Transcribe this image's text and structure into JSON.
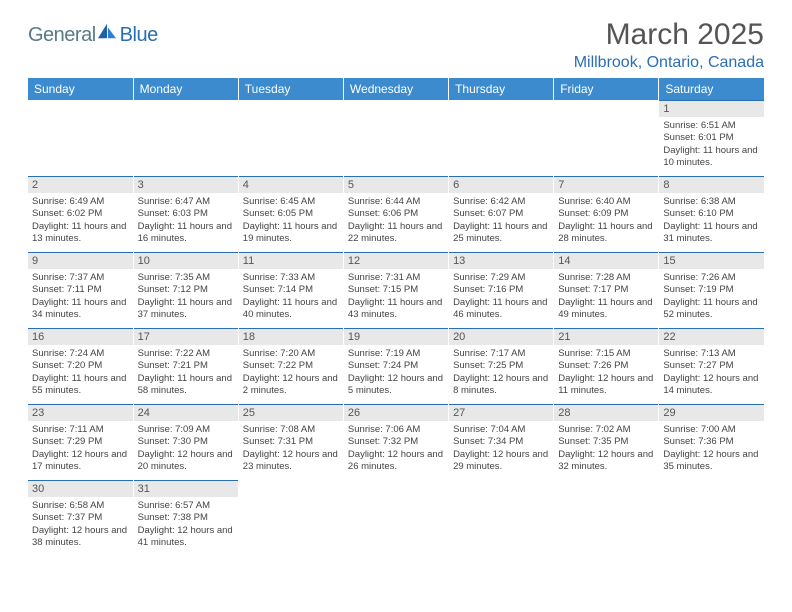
{
  "brand": {
    "part1": "General",
    "part2": "Blue"
  },
  "title": "March 2025",
  "location": "Millbrook, Ontario, Canada",
  "colors": {
    "header_bg": "#3b8bce",
    "header_text": "#ffffff",
    "daynum_bg": "#e8e8e8",
    "daynum_border": "#2a6fb5",
    "brand_gray": "#5a7a8a",
    "brand_blue": "#2a6fb5",
    "page_bg": "#ffffff"
  },
  "weekdays": [
    "Sunday",
    "Monday",
    "Tuesday",
    "Wednesday",
    "Thursday",
    "Friday",
    "Saturday"
  ],
  "weeks": [
    [
      null,
      null,
      null,
      null,
      null,
      null,
      {
        "n": "1",
        "sr": "6:51 AM",
        "ss": "6:01 PM",
        "dl": "11 hours and 10 minutes."
      }
    ],
    [
      {
        "n": "2",
        "sr": "6:49 AM",
        "ss": "6:02 PM",
        "dl": "11 hours and 13 minutes."
      },
      {
        "n": "3",
        "sr": "6:47 AM",
        "ss": "6:03 PM",
        "dl": "11 hours and 16 minutes."
      },
      {
        "n": "4",
        "sr": "6:45 AM",
        "ss": "6:05 PM",
        "dl": "11 hours and 19 minutes."
      },
      {
        "n": "5",
        "sr": "6:44 AM",
        "ss": "6:06 PM",
        "dl": "11 hours and 22 minutes."
      },
      {
        "n": "6",
        "sr": "6:42 AM",
        "ss": "6:07 PM",
        "dl": "11 hours and 25 minutes."
      },
      {
        "n": "7",
        "sr": "6:40 AM",
        "ss": "6:09 PM",
        "dl": "11 hours and 28 minutes."
      },
      {
        "n": "8",
        "sr": "6:38 AM",
        "ss": "6:10 PM",
        "dl": "11 hours and 31 minutes."
      }
    ],
    [
      {
        "n": "9",
        "sr": "7:37 AM",
        "ss": "7:11 PM",
        "dl": "11 hours and 34 minutes."
      },
      {
        "n": "10",
        "sr": "7:35 AM",
        "ss": "7:12 PM",
        "dl": "11 hours and 37 minutes."
      },
      {
        "n": "11",
        "sr": "7:33 AM",
        "ss": "7:14 PM",
        "dl": "11 hours and 40 minutes."
      },
      {
        "n": "12",
        "sr": "7:31 AM",
        "ss": "7:15 PM",
        "dl": "11 hours and 43 minutes."
      },
      {
        "n": "13",
        "sr": "7:29 AM",
        "ss": "7:16 PM",
        "dl": "11 hours and 46 minutes."
      },
      {
        "n": "14",
        "sr": "7:28 AM",
        "ss": "7:17 PM",
        "dl": "11 hours and 49 minutes."
      },
      {
        "n": "15",
        "sr": "7:26 AM",
        "ss": "7:19 PM",
        "dl": "11 hours and 52 minutes."
      }
    ],
    [
      {
        "n": "16",
        "sr": "7:24 AM",
        "ss": "7:20 PM",
        "dl": "11 hours and 55 minutes."
      },
      {
        "n": "17",
        "sr": "7:22 AM",
        "ss": "7:21 PM",
        "dl": "11 hours and 58 minutes."
      },
      {
        "n": "18",
        "sr": "7:20 AM",
        "ss": "7:22 PM",
        "dl": "12 hours and 2 minutes."
      },
      {
        "n": "19",
        "sr": "7:19 AM",
        "ss": "7:24 PM",
        "dl": "12 hours and 5 minutes."
      },
      {
        "n": "20",
        "sr": "7:17 AM",
        "ss": "7:25 PM",
        "dl": "12 hours and 8 minutes."
      },
      {
        "n": "21",
        "sr": "7:15 AM",
        "ss": "7:26 PM",
        "dl": "12 hours and 11 minutes."
      },
      {
        "n": "22",
        "sr": "7:13 AM",
        "ss": "7:27 PM",
        "dl": "12 hours and 14 minutes."
      }
    ],
    [
      {
        "n": "23",
        "sr": "7:11 AM",
        "ss": "7:29 PM",
        "dl": "12 hours and 17 minutes."
      },
      {
        "n": "24",
        "sr": "7:09 AM",
        "ss": "7:30 PM",
        "dl": "12 hours and 20 minutes."
      },
      {
        "n": "25",
        "sr": "7:08 AM",
        "ss": "7:31 PM",
        "dl": "12 hours and 23 minutes."
      },
      {
        "n": "26",
        "sr": "7:06 AM",
        "ss": "7:32 PM",
        "dl": "12 hours and 26 minutes."
      },
      {
        "n": "27",
        "sr": "7:04 AM",
        "ss": "7:34 PM",
        "dl": "12 hours and 29 minutes."
      },
      {
        "n": "28",
        "sr": "7:02 AM",
        "ss": "7:35 PM",
        "dl": "12 hours and 32 minutes."
      },
      {
        "n": "29",
        "sr": "7:00 AM",
        "ss": "7:36 PM",
        "dl": "12 hours and 35 minutes."
      }
    ],
    [
      {
        "n": "30",
        "sr": "6:58 AM",
        "ss": "7:37 PM",
        "dl": "12 hours and 38 minutes."
      },
      {
        "n": "31",
        "sr": "6:57 AM",
        "ss": "7:38 PM",
        "dl": "12 hours and 41 minutes."
      },
      null,
      null,
      null,
      null,
      null
    ]
  ],
  "labels": {
    "sunrise": "Sunrise:",
    "sunset": "Sunset:",
    "daylight": "Daylight:"
  }
}
